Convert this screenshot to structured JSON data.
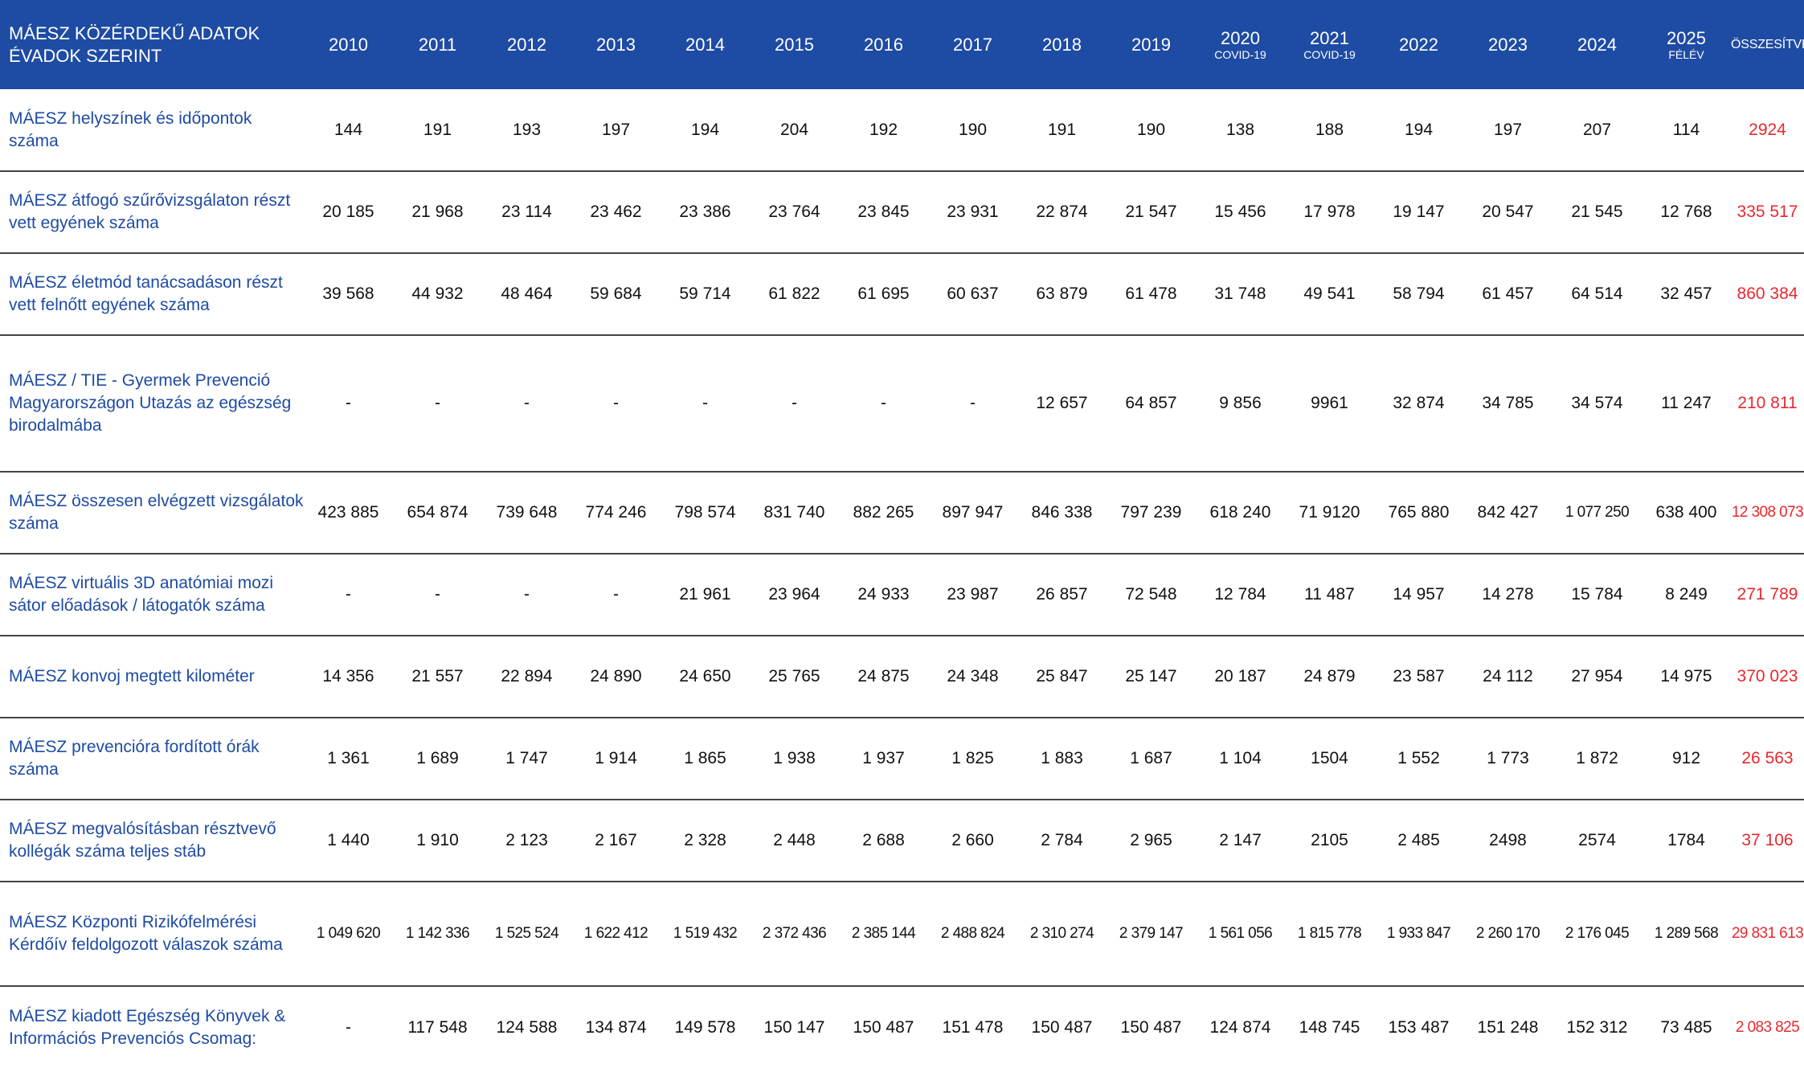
{
  "header": {
    "title": "MÁESZ KÖZÉRDEKŰ ADATOK ÉVADOK SZERINT",
    "years": [
      {
        "label": "2010",
        "sub": ""
      },
      {
        "label": "2011",
        "sub": ""
      },
      {
        "label": "2012",
        "sub": ""
      },
      {
        "label": "2013",
        "sub": ""
      },
      {
        "label": "2014",
        "sub": ""
      },
      {
        "label": "2015",
        "sub": ""
      },
      {
        "label": "2016",
        "sub": ""
      },
      {
        "label": "2017",
        "sub": ""
      },
      {
        "label": "2018",
        "sub": ""
      },
      {
        "label": "2019",
        "sub": ""
      },
      {
        "label": "2020",
        "sub": "COVID-19"
      },
      {
        "label": "2021",
        "sub": "COVID-19"
      },
      {
        "label": "2022",
        "sub": ""
      },
      {
        "label": "2023",
        "sub": ""
      },
      {
        "label": "2024",
        "sub": ""
      },
      {
        "label": "2025",
        "sub": "FÉLÉV"
      }
    ],
    "total_label": "ÖSSZESÍTVE"
  },
  "rows": [
    {
      "label": "MÁESZ helyszínek és időpontok száma",
      "values": [
        "144",
        "191",
        "193",
        "197",
        "194",
        "204",
        "192",
        "190",
        "191",
        "190",
        "138",
        "188",
        "194",
        "197",
        "207",
        "114"
      ],
      "total": "2924"
    },
    {
      "label": "MÁESZ átfogó szűrővizsgálaton részt vett egyének száma",
      "values": [
        "20 185",
        "21 968",
        "23 114",
        "23 462",
        "23 386",
        "23 764",
        "23 845",
        "23 931",
        "22 874",
        "21 547",
        "15 456",
        "17 978",
        "19 147",
        "20 547",
        "21 545",
        "12 768"
      ],
      "total": "335 517"
    },
    {
      "label": "MÁESZ életmód tanácsadáson részt vett felnőtt egyének száma",
      "values": [
        "39 568",
        "44 932",
        "48 464",
        "59 684",
        "59 714",
        "61 822",
        "61 695",
        "60 637",
        "63 879",
        "61 478",
        "31 748",
        "49 541",
        "58 794",
        "61 457",
        "64 514",
        "32 457"
      ],
      "total": "860 384"
    },
    {
      "label": "MÁESZ / TIE - Gyermek Prevenció Magyarországon Utazás az egészség birodalmába",
      "values": [
        "-",
        "-",
        "-",
        "-",
        "-",
        "-",
        "-",
        "-",
        "12 657",
        "64 857",
        "9 856",
        "9961",
        "32 874",
        "34 785",
        "34 574",
        "11 247"
      ],
      "total": "210 811"
    },
    {
      "label": "MÁESZ összesen elvégzett vizsgálatok száma",
      "values": [
        "423 885",
        "654 874",
        "739 648",
        "774 246",
        "798 574",
        "831 740",
        "882 265",
        "897 947",
        "846 338",
        "797 239",
        "618 240",
        "71 9120",
        "765 880",
        "842 427",
        "1 077 250",
        "638 400"
      ],
      "total": "12 308 073"
    },
    {
      "label": "MÁESZ virtuális 3D anatómiai mozi sátor előadások / látogatók száma",
      "values": [
        "-",
        "-",
        "-",
        "-",
        "21 961",
        "23 964",
        "24 933",
        "23 987",
        "26 857",
        "72 548",
        "12 784",
        "11 487",
        "14 957",
        "14 278",
        "15 784",
        "8 249"
      ],
      "total": "271 789"
    },
    {
      "label": "MÁESZ konvoj megtett kilométer",
      "values": [
        "14 356",
        "21 557",
        "22 894",
        "24 890",
        "24 650",
        "25 765",
        "24 875",
        "24 348",
        "25 847",
        "25 147",
        "20 187",
        "24 879",
        "23 587",
        "24 112",
        "27 954",
        "14 975"
      ],
      "total": "370 023"
    },
    {
      "label": "MÁESZ prevencióra fordított órák száma",
      "values": [
        "1 361",
        "1 689",
        "1 747",
        "1 914",
        "1 865",
        "1 938",
        "1 937",
        "1 825",
        "1 883",
        "1 687",
        "1 104",
        "1504",
        "1 552",
        "1 773",
        "1 872",
        "912"
      ],
      "total": "26 563"
    },
    {
      "label": "MÁESZ megvalósításban résztvevő kollégák száma teljes stáb",
      "values": [
        "1 440",
        "1 910",
        "2 123",
        "2 167",
        "2 328",
        "2 448",
        "2 688",
        "2 660",
        "2 784",
        "2 965",
        "2 147",
        "2105",
        "2 485",
        "2498",
        "2574",
        "1784"
      ],
      "total": "37 106"
    },
    {
      "label": "MÁESZ Központi Rizikófelmérési Kérdőív feldolgozott válaszok száma",
      "values": [
        "1 049 620",
        "1 142 336",
        "1 525 524",
        "1 622 412",
        "1 519 432",
        "2 372 436",
        "2 385 144",
        "2 488 824",
        "2 310 274",
        "2 379 147",
        "1 561 056",
        "1 815 778",
        "1 933 847",
        "2 260 170",
        "2 176 045",
        "1 289 568"
      ],
      "total": "29 831 613"
    },
    {
      "label": "MÁESZ kiadott Egészség Könyvek & Információs Prevenciós Csomag:",
      "values": [
        "-",
        "117 548",
        "124 588",
        "134 874",
        "149 578",
        "150 147",
        "150 487",
        "151 478",
        "150 487",
        "150 487",
        "124 874",
        "148 745",
        "153 487",
        "151 248",
        "152 312",
        "73 485"
      ],
      "total": "2 083 825"
    }
  ],
  "colors": {
    "header_bg": "#1e4ba3",
    "label_text": "#1e4ba3",
    "total_text": "#e8282e"
  }
}
